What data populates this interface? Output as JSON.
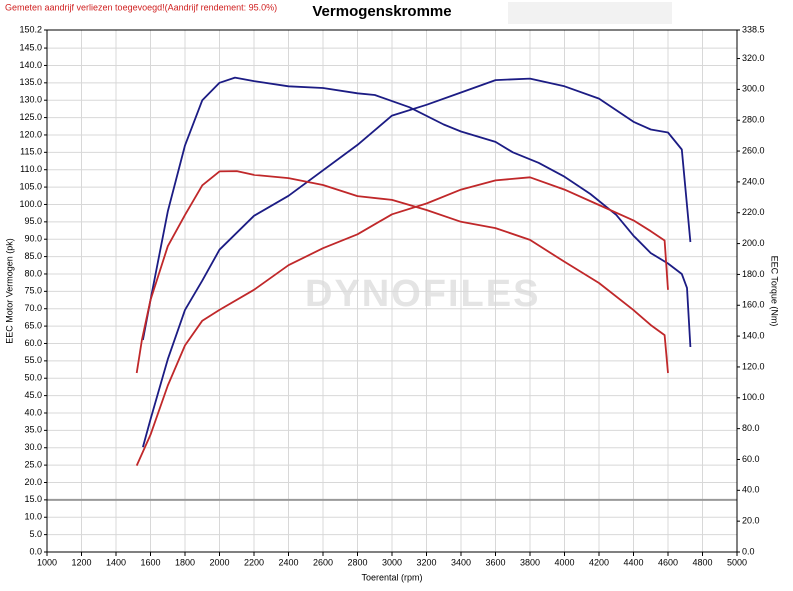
{
  "chart_data": {
    "type": "line",
    "title": "Vermogenskromme",
    "note": "Gemeten aandrijf verliezen toegevoegd!(Aandrijf rendement: 95.0%)",
    "watermark": "DYNOFILES",
    "xlabel": "Toerental (rpm)",
    "ylabel": "EEC Motor Vermogen (pk)",
    "y2label": "EEC Torque (Nm)",
    "xlim": [
      1000,
      5000
    ],
    "xticks": [
      1000,
      1200,
      1400,
      1600,
      1800,
      2000,
      2200,
      2400,
      2600,
      2800,
      3000,
      3200,
      3400,
      3600,
      3800,
      4000,
      4200,
      4400,
      4600,
      4800,
      5000
    ],
    "ylim": [
      0,
      150.2
    ],
    "yticks": [
      {
        "value": 0,
        "label": "0.0"
      },
      {
        "value": 5,
        "label": "5.0"
      },
      {
        "value": 10,
        "label": "10.0"
      },
      {
        "value": 15,
        "label": "15.0"
      },
      {
        "value": 20,
        "label": "20.0"
      },
      {
        "value": 25,
        "label": "25.0"
      },
      {
        "value": 30,
        "label": "30.0"
      },
      {
        "value": 35,
        "label": "35.0"
      },
      {
        "value": 40,
        "label": "40.0"
      },
      {
        "value": 45,
        "label": "45.0"
      },
      {
        "value": 50,
        "label": "50.0"
      },
      {
        "value": 55,
        "label": "55.0"
      },
      {
        "value": 60,
        "label": "60.0"
      },
      {
        "value": 65,
        "label": "65.0"
      },
      {
        "value": 70,
        "label": "70.0"
      },
      {
        "value": 75,
        "label": "75.0"
      },
      {
        "value": 80,
        "label": "80.0"
      },
      {
        "value": 85,
        "label": "85.0"
      },
      {
        "value": 90,
        "label": "90.0"
      },
      {
        "value": 95,
        "label": "95.0"
      },
      {
        "value": 100,
        "label": "100.0"
      },
      {
        "value": 105,
        "label": "105.0"
      },
      {
        "value": 110,
        "label": "110.0"
      },
      {
        "value": 115,
        "label": "115.0"
      },
      {
        "value": 120,
        "label": "120.0"
      },
      {
        "value": 125,
        "label": "125.0"
      },
      {
        "value": 130,
        "label": "130.0"
      },
      {
        "value": 135,
        "label": "135.0"
      },
      {
        "value": 140,
        "label": "140.0"
      },
      {
        "value": 145,
        "label": "145.0"
      },
      {
        "value": 150.2,
        "label": "150.2"
      }
    ],
    "y2lim": [
      0,
      338.5
    ],
    "y2ticks": [
      {
        "value": 0,
        "label": "0.0"
      },
      {
        "value": 20,
        "label": "20.0"
      },
      {
        "value": 40,
        "label": "40.0"
      },
      {
        "value": 60,
        "label": "60.0"
      },
      {
        "value": 80,
        "label": "80.0"
      },
      {
        "value": 100,
        "label": "100.0"
      },
      {
        "value": 120,
        "label": "120.0"
      },
      {
        "value": 140,
        "label": "140.0"
      },
      {
        "value": 160,
        "label": "160.0"
      },
      {
        "value": 180,
        "label": "180.0"
      },
      {
        "value": 200,
        "label": "200.0"
      },
      {
        "value": 220,
        "label": "220.0"
      },
      {
        "value": 240,
        "label": "240.0"
      },
      {
        "value": 260,
        "label": "260.0"
      },
      {
        "value": 280,
        "label": "280.0"
      },
      {
        "value": 300,
        "label": "300.0"
      },
      {
        "value": 320,
        "label": "320.0"
      },
      {
        "value": 338.5,
        "label": "338.5"
      }
    ],
    "grid": true,
    "hline": 15,
    "series": [
      {
        "color": "#1c1c84",
        "axis": "y",
        "x": [
          1556,
          1600,
          1700,
          1800,
          1900,
          2000,
          2090,
          2200,
          2400,
          2600,
          2800,
          2900,
          3100,
          3300,
          3400,
          3600,
          3700,
          3850,
          4000,
          4150,
          4300,
          4400,
          4500,
          4600,
          4680,
          4710,
          4730
        ],
        "values": [
          61,
          72.5,
          98,
          117,
          130,
          135,
          136.5,
          135.5,
          134,
          133.5,
          132,
          131.5,
          128,
          123,
          121,
          118,
          115,
          112,
          108,
          103,
          97,
          91,
          86,
          83,
          80,
          76,
          59
        ]
      },
      {
        "color": "#1c1c84",
        "axis": "y2",
        "x": [
          1556,
          1600,
          1700,
          1800,
          1900,
          2000,
          2200,
          2400,
          2800,
          3000,
          3200,
          3400,
          3600,
          3800,
          4000,
          4200,
          4400,
          4500,
          4600,
          4680,
          4730
        ],
        "values": [
          68,
          86,
          125,
          157,
          176,
          196,
          218,
          231,
          264,
          283,
          290,
          298,
          306,
          307,
          302,
          294,
          279,
          274,
          272,
          261,
          201
        ]
      },
      {
        "color": "#c0282a",
        "axis": "y",
        "x": [
          1520,
          1550,
          1600,
          1700,
          1800,
          1900,
          2000,
          2100,
          2200,
          2400,
          2600,
          2800,
          3000,
          3200,
          3400,
          3600,
          3800,
          4000,
          4200,
          4400,
          4500,
          4580,
          4600
        ],
        "values": [
          51.5,
          61,
          72.5,
          88,
          97,
          105.5,
          109.5,
          109.6,
          108.5,
          107.6,
          105.6,
          102.4,
          101.3,
          98.4,
          95,
          93.2,
          89.8,
          83.5,
          77.4,
          69.6,
          65.3,
          62.4,
          51.5
        ]
      },
      {
        "color": "#c0282a",
        "axis": "y2",
        "x": [
          1520,
          1600,
          1700,
          1800,
          1900,
          2000,
          2200,
          2400,
          2600,
          2800,
          3000,
          3200,
          3400,
          3600,
          3800,
          4000,
          4200,
          4400,
          4500,
          4580,
          4600
        ],
        "values": [
          56,
          76,
          108,
          134,
          150,
          157,
          170,
          186,
          197,
          206,
          219,
          226,
          235,
          241,
          243,
          235,
          225,
          215,
          208,
          202,
          170
        ]
      }
    ]
  }
}
